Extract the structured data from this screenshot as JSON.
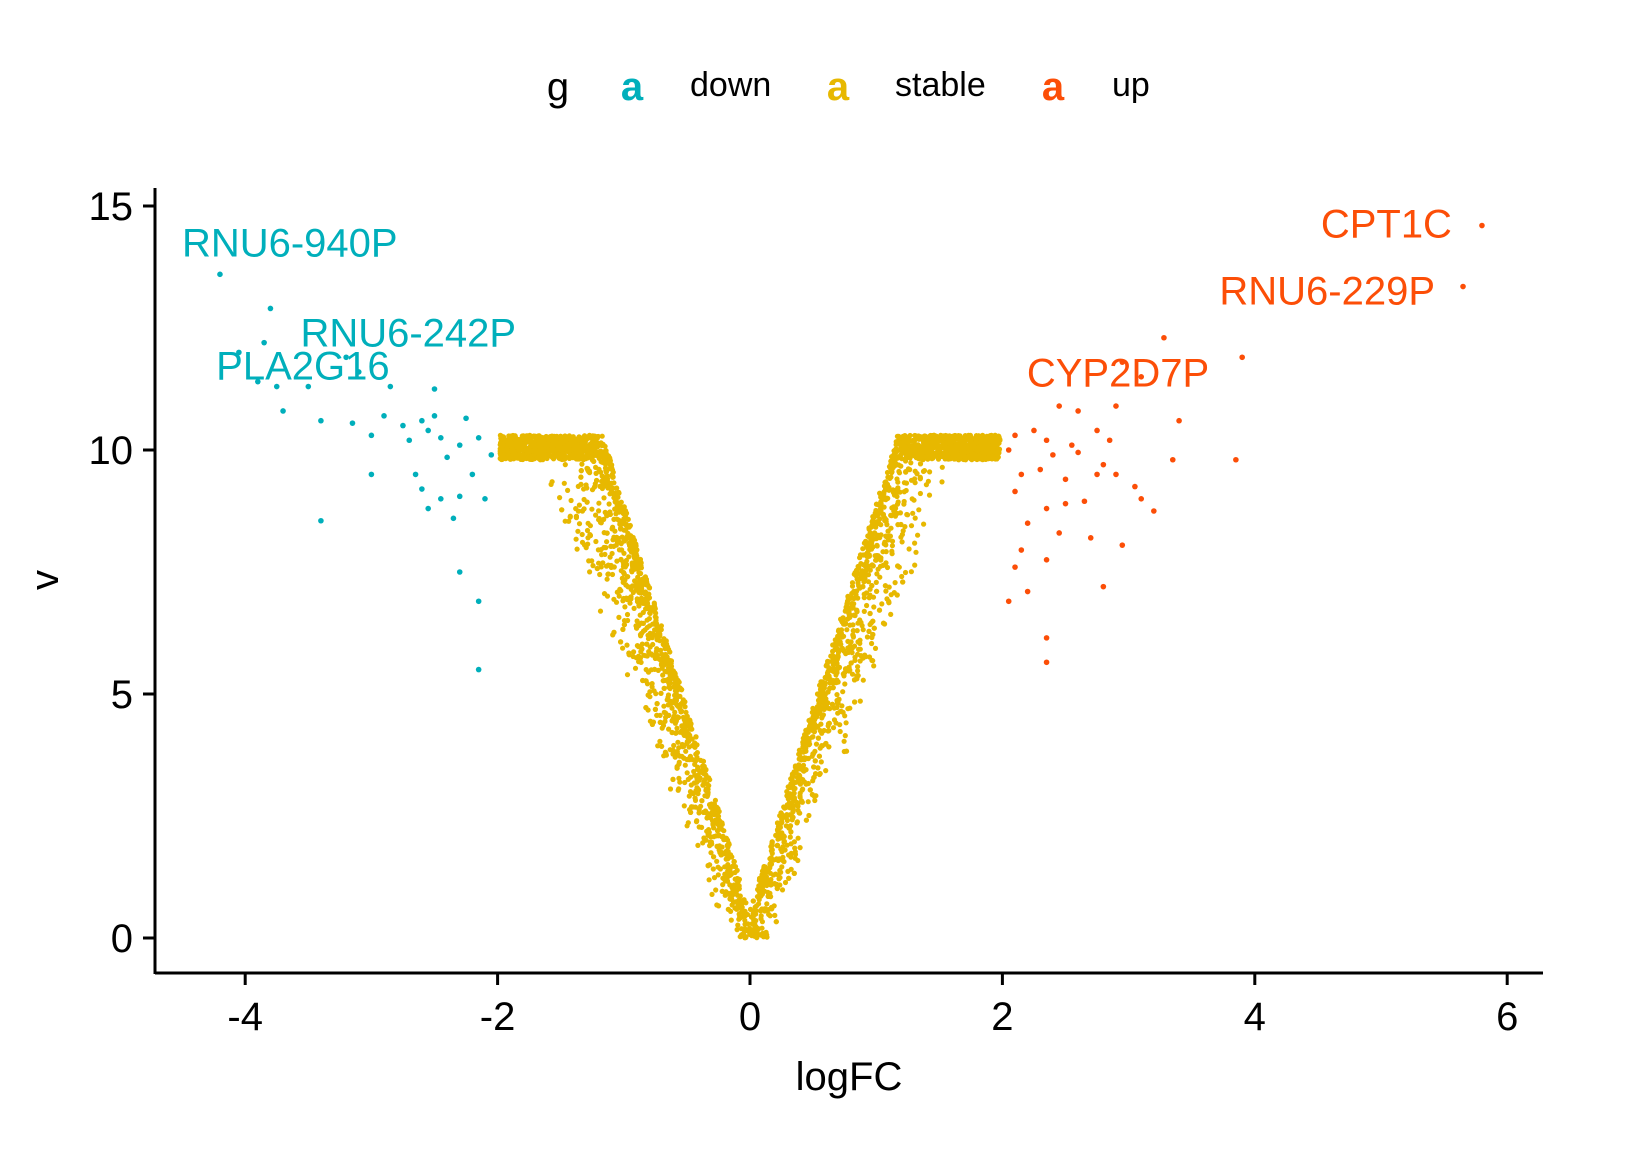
{
  "chart_data": {
    "type": "scatter",
    "title": "",
    "xlabel": "logFC",
    "ylabel": "v",
    "xlim": [
      -4.75,
      5.75
    ],
    "ylim": [
      -0.75,
      15.4
    ],
    "x_ticks": [
      -4,
      -2,
      0,
      2,
      4,
      6
    ],
    "y_ticks": [
      0,
      5,
      10,
      15
    ],
    "grid": false,
    "legend": {
      "title": "g",
      "position": "top",
      "key_glyph": "a",
      "entries": [
        {
          "label": "down",
          "color": "#00AFBB"
        },
        {
          "label": "stable",
          "color": "#E7B800"
        },
        {
          "label": "up",
          "color": "#FC4E07"
        }
      ]
    },
    "colors": {
      "down": "#00AFBB",
      "stable": "#E7B800",
      "up": "#FC4E07"
    },
    "stable_cloud": {
      "description_visible": false,
      "approx_relation": "v ≈ 8.3 * |logFC| with scatter, |logFC| < 2",
      "x_range": [
        -2.0,
        2.0
      ]
    },
    "series": [
      {
        "name": "down",
        "points": [
          [
            -4.2,
            13.6
          ],
          [
            -3.8,
            12.9
          ],
          [
            -4.05,
            12.0
          ],
          [
            -3.85,
            12.2
          ],
          [
            -3.2,
            11.9
          ],
          [
            -3.9,
            11.4
          ],
          [
            -3.75,
            11.3
          ],
          [
            -3.5,
            11.3
          ],
          [
            -3.1,
            11.6
          ],
          [
            -2.85,
            11.3
          ],
          [
            -2.5,
            11.25
          ],
          [
            -3.7,
            10.8
          ],
          [
            -3.4,
            10.6
          ],
          [
            -3.15,
            10.55
          ],
          [
            -2.9,
            10.7
          ],
          [
            -2.75,
            10.5
          ],
          [
            -2.6,
            10.6
          ],
          [
            -2.5,
            10.7
          ],
          [
            -2.25,
            10.65
          ],
          [
            -3.0,
            10.3
          ],
          [
            -2.7,
            10.2
          ],
          [
            -2.55,
            10.4
          ],
          [
            -2.45,
            10.25
          ],
          [
            -2.3,
            10.1
          ],
          [
            -2.15,
            10.25
          ],
          [
            -2.05,
            9.9
          ],
          [
            -3.0,
            9.5
          ],
          [
            -2.65,
            9.5
          ],
          [
            -2.4,
            9.85
          ],
          [
            -2.2,
            9.5
          ],
          [
            -2.6,
            9.2
          ],
          [
            -2.45,
            9.0
          ],
          [
            -2.3,
            9.05
          ],
          [
            -2.1,
            9.0
          ],
          [
            -2.55,
            8.8
          ],
          [
            -2.35,
            8.6
          ],
          [
            -3.4,
            8.55
          ],
          [
            -2.3,
            7.5
          ],
          [
            -2.15,
            6.9
          ],
          [
            -2.15,
            5.5
          ]
        ]
      },
      {
        "name": "up",
        "points": [
          [
            5.8,
            14.6
          ],
          [
            5.65,
            13.35
          ],
          [
            3.28,
            12.3
          ],
          [
            3.9,
            11.9
          ],
          [
            2.95,
            11.8
          ],
          [
            3.1,
            11.5
          ],
          [
            2.45,
            10.9
          ],
          [
            2.6,
            10.8
          ],
          [
            2.9,
            10.9
          ],
          [
            3.4,
            10.6
          ],
          [
            2.1,
            10.3
          ],
          [
            2.25,
            10.4
          ],
          [
            2.35,
            10.2
          ],
          [
            2.55,
            10.1
          ],
          [
            2.75,
            10.4
          ],
          [
            2.85,
            10.2
          ],
          [
            2.05,
            10.0
          ],
          [
            2.4,
            9.9
          ],
          [
            2.6,
            9.95
          ],
          [
            2.8,
            9.7
          ],
          [
            3.35,
            9.8
          ],
          [
            3.85,
            9.8
          ],
          [
            2.15,
            9.5
          ],
          [
            2.3,
            9.6
          ],
          [
            2.5,
            9.4
          ],
          [
            2.75,
            9.5
          ],
          [
            2.9,
            9.5
          ],
          [
            3.05,
            9.25
          ],
          [
            3.1,
            9.0
          ],
          [
            2.1,
            9.15
          ],
          [
            2.35,
            8.8
          ],
          [
            2.5,
            8.9
          ],
          [
            2.65,
            8.95
          ],
          [
            3.2,
            8.75
          ],
          [
            2.2,
            8.5
          ],
          [
            2.45,
            8.3
          ],
          [
            2.7,
            8.2
          ],
          [
            2.95,
            8.05
          ],
          [
            2.15,
            7.95
          ],
          [
            2.35,
            7.75
          ],
          [
            2.1,
            7.6
          ],
          [
            2.2,
            7.1
          ],
          [
            2.05,
            6.9
          ],
          [
            2.8,
            7.2
          ],
          [
            2.35,
            6.15
          ],
          [
            2.35,
            5.65
          ]
        ]
      }
    ],
    "annotations": [
      {
        "text": "RNU6-940P",
        "x": -4.2,
        "y": 13.6,
        "series": "down"
      },
      {
        "text": "RNU6-242P",
        "x": -3.8,
        "y": 12.9,
        "series": "down"
      },
      {
        "text": "PLA2G16",
        "x": -3.2,
        "y": 11.9,
        "series": "down"
      },
      {
        "text": "CPT1C",
        "x": 5.8,
        "y": 14.6,
        "series": "up"
      },
      {
        "text": "RNU6-229P",
        "x": 5.65,
        "y": 13.35,
        "series": "up"
      },
      {
        "text": "CYP2D7P",
        "x": 3.9,
        "y": 11.9,
        "series": "up"
      }
    ]
  }
}
